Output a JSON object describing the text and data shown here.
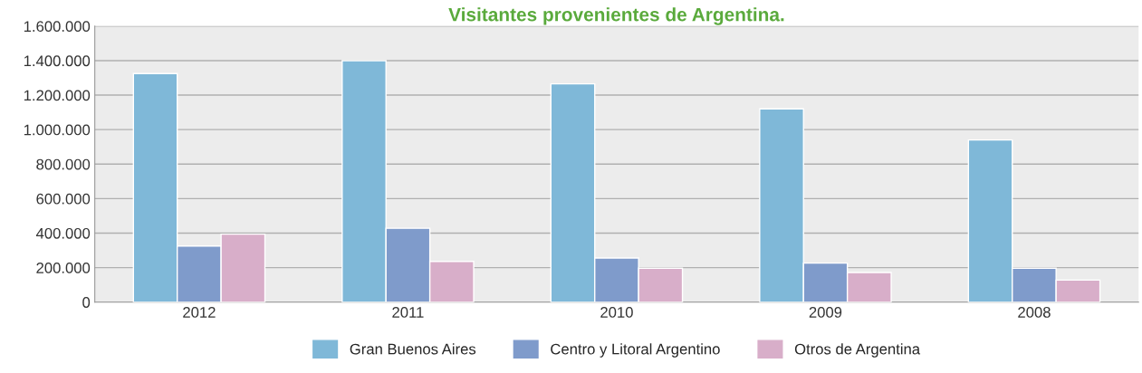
{
  "chart_data": {
    "type": "bar",
    "title": "Visitantes provenientes de Argentina.",
    "categories": [
      "2012",
      "2011",
      "2010",
      "2009",
      "2008"
    ],
    "series": [
      {
        "name": "Gran Buenos Aires",
        "color": "#7fb8d8",
        "values": [
          1325000,
          1400000,
          1265000,
          1120000,
          940000
        ]
      },
      {
        "name": "Centro y Litoral Argentino",
        "color": "#7f9bcb",
        "values": [
          325000,
          428000,
          256000,
          226000,
          197000
        ]
      },
      {
        "name": "Otros de Argentina",
        "color": "#d8aec9",
        "values": [
          394000,
          236000,
          197000,
          172000,
          128000
        ]
      }
    ],
    "ylim": [
      0,
      1600000
    ],
    "yticks": [
      0,
      {
        "value": 200000,
        "label": "200.000"
      },
      {
        "value": 400000,
        "label": "400.000"
      },
      {
        "value": 600000,
        "label": "600.000"
      },
      {
        "value": 800000,
        "label": "800.000"
      },
      {
        "value": 1000000,
        "label": "1.000.000"
      },
      {
        "value": 1200000,
        "label": "1.200.000"
      },
      {
        "value": 1400000,
        "label": "1.400.000"
      },
      {
        "value": 1600000,
        "label": "1.600.000"
      }
    ],
    "grid": "y",
    "legend": "bottom"
  }
}
